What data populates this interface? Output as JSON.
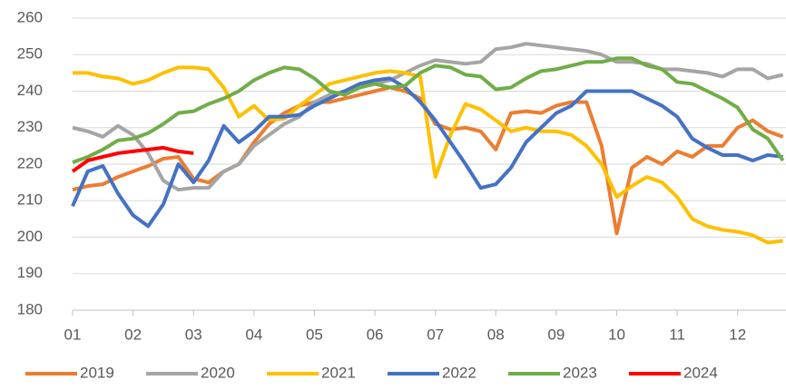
{
  "chart_data": {
    "type": "line",
    "x": [
      1,
      1.25,
      1.5,
      1.75,
      2,
      2.25,
      2.5,
      2.75,
      3,
      3.25,
      3.5,
      3.75,
      4,
      4.25,
      4.5,
      4.75,
      5,
      5.25,
      5.5,
      5.75,
      6,
      6.25,
      6.5,
      6.75,
      7,
      7.25,
      7.5,
      7.75,
      8,
      8.25,
      8.5,
      8.75,
      9,
      9.25,
      9.5,
      9.75,
      10,
      10.25,
      10.5,
      10.75,
      11,
      11.25,
      11.5,
      11.75,
      12,
      12.25,
      12.5,
      12.75
    ],
    "xlim": [
      1,
      12.8
    ],
    "xticks": [
      {
        "value": 1,
        "label": "01"
      },
      {
        "value": 2,
        "label": "02"
      },
      {
        "value": 3,
        "label": "03"
      },
      {
        "value": 4,
        "label": "04"
      },
      {
        "value": 5,
        "label": "05"
      },
      {
        "value": 6,
        "label": "06"
      },
      {
        "value": 7,
        "label": "07"
      },
      {
        "value": 8,
        "label": "08"
      },
      {
        "value": 9,
        "label": "09"
      },
      {
        "value": 10,
        "label": "10"
      },
      {
        "value": 11,
        "label": "11"
      },
      {
        "value": 12,
        "label": "12"
      }
    ],
    "ylim": [
      180,
      260
    ],
    "yticks": [
      180,
      190,
      200,
      210,
      220,
      230,
      240,
      250,
      260
    ],
    "grid": true,
    "legend": "bottom",
    "series": [
      {
        "name": "2019",
        "color": "#ED7D31",
        "values": [
          213,
          214,
          214.5,
          216.5,
          218,
          219.5,
          221.5,
          222,
          216,
          215,
          218,
          220,
          226,
          231,
          234,
          236,
          237,
          237,
          238,
          239,
          240,
          241,
          240,
          238,
          231,
          229.5,
          230,
          229,
          224,
          234,
          234.5,
          234,
          236,
          237,
          237,
          225,
          201,
          219,
          222,
          220,
          223.5,
          222,
          225,
          225,
          230,
          232,
          229,
          227.5
        ]
      },
      {
        "name": "2020",
        "color": "#A5A5A5",
        "values": [
          230,
          229,
          227.5,
          230.5,
          228,
          223,
          215.5,
          213,
          213.5,
          213.5,
          218,
          220,
          225,
          228,
          231,
          233,
          237,
          239,
          240,
          241,
          242,
          243,
          245,
          247,
          248.5,
          248,
          247.5,
          248,
          251.5,
          252,
          253,
          252.5,
          252,
          251.5,
          251,
          250,
          248,
          248,
          247.5,
          246,
          246,
          245.5,
          245,
          244,
          246,
          246,
          243.5,
          244.5
        ]
      },
      {
        "name": "2021",
        "color": "#FFC000",
        "values": [
          245,
          245,
          244,
          243.5,
          242,
          243,
          245,
          246.5,
          246.5,
          246,
          241,
          233,
          236,
          232,
          232.5,
          236,
          239,
          242,
          243,
          244,
          245,
          245.5,
          245,
          244,
          216.5,
          228,
          236.5,
          235,
          232,
          229,
          230,
          229,
          229,
          228,
          225,
          220,
          211,
          214,
          216.5,
          215,
          211,
          205,
          203,
          202,
          201.5,
          200.5,
          198.5,
          199
        ]
      },
      {
        "name": "2022",
        "color": "#4472C4",
        "values": [
          208.5,
          218,
          219.5,
          212,
          206,
          203,
          209,
          220,
          215,
          221,
          230.5,
          226,
          229,
          233,
          233,
          233.5,
          236,
          238,
          240,
          242,
          243,
          243.5,
          241,
          237,
          232,
          226,
          220,
          213.5,
          214.5,
          219,
          226,
          230,
          234,
          236,
          240,
          240,
          240,
          240,
          238,
          236,
          233,
          227,
          224.5,
          222.5,
          222.5,
          221,
          222.5,
          222
        ]
      },
      {
        "name": "2023",
        "color": "#70AD47",
        "values": [
          220.5,
          222,
          224,
          226.5,
          227,
          228.5,
          231,
          234,
          234.5,
          236.5,
          238,
          240,
          243,
          245,
          246.5,
          246,
          243.5,
          240,
          239,
          241,
          242,
          241,
          241.5,
          245,
          247,
          246.5,
          244.5,
          244,
          240.5,
          241,
          243.5,
          245.5,
          246,
          247,
          248,
          248,
          249,
          249,
          247,
          246,
          242.5,
          242,
          240,
          238,
          235.5,
          229.5,
          227,
          221
        ]
      },
      {
        "name": "2024",
        "color": "#FF0000",
        "values": [
          218,
          221,
          222,
          223,
          223.5,
          224,
          224.5,
          223.5,
          223,
          null,
          null,
          null,
          null,
          null,
          null,
          null,
          null,
          null,
          null,
          null,
          null,
          null,
          null,
          null,
          null,
          null,
          null,
          null,
          null,
          null,
          null,
          null,
          null,
          null,
          null,
          null,
          null,
          null,
          null,
          null,
          null,
          null,
          null,
          null,
          null,
          null,
          null,
          null
        ]
      }
    ]
  }
}
